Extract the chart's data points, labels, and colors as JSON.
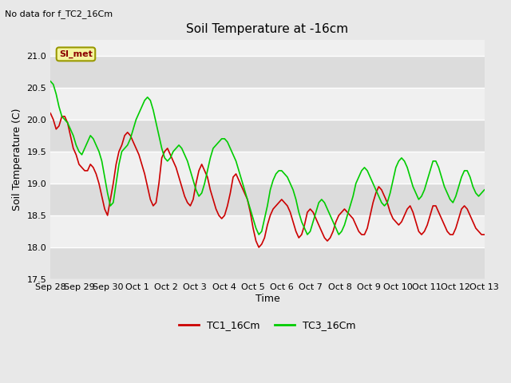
{
  "title": "Soil Temperature at -16cm",
  "top_left_text": "No data for f_TC2_16Cm",
  "ylabel": "Soil Temperature (C)",
  "xlabel": "Time",
  "ylim": [
    17.5,
    21.25
  ],
  "yticks": [
    17.5,
    18.0,
    18.5,
    19.0,
    19.5,
    20.0,
    20.5,
    21.0
  ],
  "xtick_labels": [
    "Sep 28",
    "Sep 29",
    "Sep 30",
    "Oct 1",
    "Oct 2",
    "Oct 3",
    "Oct 4",
    "Oct 5",
    "Oct 6",
    "Oct 7",
    "Oct 8",
    "Oct 9",
    "Oct 10",
    "Oct 11",
    "Oct 12",
    "Oct 13"
  ],
  "legend_labels": [
    "TC1_16Cm",
    "TC3_16Cm"
  ],
  "legend_colors": [
    "#cc0000",
    "#00cc00"
  ],
  "line1_color": "#cc0000",
  "line2_color": "#00cc00",
  "annotation_text": "SI_met",
  "bg_color": "#e8e8e8",
  "plot_bg_color": "#f0f0f0",
  "band_colors": [
    "#dcdcdc",
    "#f0f0f0"
  ],
  "grid_color": "#ffffff",
  "title_fontsize": 11,
  "label_fontsize": 9,
  "tick_fontsize": 8,
  "tc1_values": [
    20.1,
    20.0,
    19.85,
    19.9,
    20.05,
    20.05,
    19.95,
    19.75,
    19.55,
    19.45,
    19.3,
    19.25,
    19.2,
    19.2,
    19.3,
    19.25,
    19.15,
    19.0,
    18.8,
    18.6,
    18.5,
    18.75,
    19.0,
    19.3,
    19.5,
    19.6,
    19.75,
    19.8,
    19.75,
    19.65,
    19.55,
    19.45,
    19.3,
    19.15,
    18.95,
    18.75,
    18.65,
    18.7,
    19.0,
    19.4,
    19.5,
    19.55,
    19.45,
    19.35,
    19.25,
    19.1,
    18.95,
    18.8,
    18.7,
    18.65,
    18.75,
    19.0,
    19.2,
    19.3,
    19.2,
    19.1,
    18.9,
    18.75,
    18.6,
    18.5,
    18.45,
    18.5,
    18.65,
    18.85,
    19.1,
    19.15,
    19.05,
    18.95,
    18.85,
    18.75,
    18.55,
    18.3,
    18.1,
    18.0,
    18.05,
    18.15,
    18.35,
    18.5,
    18.6,
    18.65,
    18.7,
    18.75,
    18.7,
    18.65,
    18.55,
    18.4,
    18.25,
    18.15,
    18.2,
    18.35,
    18.55,
    18.6,
    18.55,
    18.45,
    18.35,
    18.25,
    18.15,
    18.1,
    18.15,
    18.25,
    18.4,
    18.5,
    18.55,
    18.6,
    18.55,
    18.5,
    18.45,
    18.35,
    18.25,
    18.2,
    18.2,
    18.3,
    18.5,
    18.7,
    18.85,
    18.95,
    18.9,
    18.8,
    18.7,
    18.55,
    18.45,
    18.4,
    18.35,
    18.4,
    18.5,
    18.6,
    18.65,
    18.55,
    18.4,
    18.25,
    18.2,
    18.25,
    18.35,
    18.5,
    18.65,
    18.65,
    18.55,
    18.45,
    18.35,
    18.25,
    18.2,
    18.2,
    18.3,
    18.45,
    18.6,
    18.65,
    18.6,
    18.5,
    18.4,
    18.3,
    18.25,
    18.2,
    18.2
  ],
  "tc3_values": [
    20.6,
    20.55,
    20.4,
    20.2,
    20.05,
    20.0,
    19.95,
    19.85,
    19.75,
    19.6,
    19.5,
    19.45,
    19.55,
    19.65,
    19.75,
    19.7,
    19.6,
    19.5,
    19.35,
    19.1,
    18.85,
    18.65,
    18.7,
    19.0,
    19.3,
    19.5,
    19.55,
    19.6,
    19.7,
    19.85,
    20.0,
    20.1,
    20.2,
    20.3,
    20.35,
    20.3,
    20.15,
    19.95,
    19.75,
    19.55,
    19.4,
    19.35,
    19.4,
    19.5,
    19.55,
    19.6,
    19.55,
    19.45,
    19.35,
    19.2,
    19.05,
    18.9,
    18.8,
    18.85,
    19.0,
    19.2,
    19.4,
    19.55,
    19.6,
    19.65,
    19.7,
    19.7,
    19.65,
    19.55,
    19.45,
    19.35,
    19.2,
    19.05,
    18.9,
    18.75,
    18.6,
    18.45,
    18.3,
    18.2,
    18.25,
    18.45,
    18.65,
    18.9,
    19.05,
    19.15,
    19.2,
    19.2,
    19.15,
    19.1,
    19.0,
    18.9,
    18.75,
    18.55,
    18.4,
    18.3,
    18.2,
    18.25,
    18.4,
    18.55,
    18.7,
    18.75,
    18.7,
    18.6,
    18.5,
    18.4,
    18.3,
    18.2,
    18.25,
    18.35,
    18.5,
    18.65,
    18.8,
    19.0,
    19.1,
    19.2,
    19.25,
    19.2,
    19.1,
    19.0,
    18.9,
    18.8,
    18.7,
    18.65,
    18.7,
    18.85,
    19.05,
    19.25,
    19.35,
    19.4,
    19.35,
    19.25,
    19.1,
    18.95,
    18.85,
    18.75,
    18.8,
    18.9,
    19.05,
    19.2,
    19.35,
    19.35,
    19.25,
    19.1,
    18.95,
    18.85,
    18.75,
    18.7,
    18.8,
    18.95,
    19.1,
    19.2,
    19.2,
    19.1,
    18.95,
    18.85,
    18.8,
    18.85,
    18.9
  ]
}
